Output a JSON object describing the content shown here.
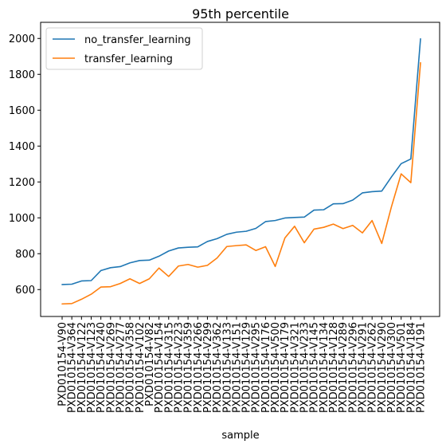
{
  "chart_data": {
    "type": "line",
    "title": "95th percentile",
    "xlabel": "sample",
    "ylabel": "",
    "ylim": [
      450,
      2090
    ],
    "yticks": [
      600,
      800,
      1000,
      1200,
      1400,
      1600,
      1800,
      2000
    ],
    "legend_position": "top-left",
    "categories": [
      "PXD010154-V90",
      "PXD010154-V364",
      "PXD010154-V122",
      "PXD010154-V123",
      "PXD010154-V240",
      "PXD010154-V269",
      "PXD010154-V277",
      "PXD010154-V358",
      "PXD010154-V102",
      "PXD010154-V82",
      "PXD010154-V154",
      "PXD010154-V315",
      "PXD010154-V223",
      "PXD010154-V359",
      "PXD010154-V266",
      "PXD010154-V299",
      "PXD010154-V362",
      "PXD010154-V133",
      "PXD010154-V151",
      "PXD010154-V129",
      "PXD010154-V295",
      "PXD010154-V176",
      "PXD010154-V500",
      "PXD010154-V179",
      "PXD010154-V321",
      "PXD010154-V233",
      "PXD010154-V145",
      "PXD010154-V134",
      "PXD010154-V128",
      "PXD010154-V289",
      "PXD010154-V296",
      "PXD010154-V291",
      "PXD010154-V262",
      "PXD010154-V290",
      "PXD010154-V300",
      "PXD010154-V501",
      "PXD010154-V184",
      "PXD010154-V191"
    ],
    "series": [
      {
        "name": "no_transfer_learning",
        "color": "#1f77b4",
        "values": [
          628,
          630,
          648,
          650,
          706,
          722,
          728,
          749,
          762,
          764,
          786,
          815,
          832,
          836,
          838,
          868,
          884,
          908,
          920,
          925,
          941,
          979,
          985,
          999,
          1002,
          1004,
          1043,
          1045,
          1078,
          1079,
          1099,
          1139,
          1146,
          1149,
          1228,
          1302,
          1328,
          1998
        ]
      },
      {
        "name": "transfer_learning",
        "color": "#ff7f0e",
        "values": [
          520,
          522,
          546,
          574,
          614,
          616,
          634,
          660,
          634,
          660,
          720,
          673,
          731,
          740,
          725,
          735,
          776,
          840,
          845,
          849,
          818,
          839,
          729,
          888,
          953,
          861,
          937,
          947,
          965,
          940,
          958,
          916,
          985,
          857,
          1062,
          1245,
          1196,
          1865
        ]
      }
    ]
  }
}
